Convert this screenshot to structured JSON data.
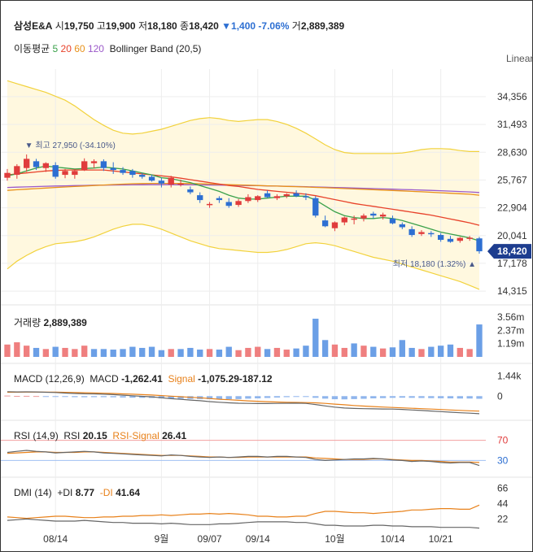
{
  "header": {
    "name": "삼성E&A",
    "open_label": "시",
    "open": "19,750",
    "high_label": "고",
    "high": "19,900",
    "low_label": "저",
    "low": "18,180",
    "close_label": "종",
    "close": "18,420",
    "change_arrow": "▼",
    "change": "1,400",
    "change_pct": "-7.06%",
    "volume_label": "거",
    "volume": "2,889,389"
  },
  "legend": {
    "ma_label": "이동평균",
    "ma_periods": [
      "5",
      "20",
      "60",
      "120"
    ],
    "ma_colors": [
      "#3aa14a",
      "#e8422a",
      "#e8911a",
      "#9b59c9"
    ],
    "bollinger": "Bollinger Band (20,5)"
  },
  "scale_mode": "Linear",
  "colors": {
    "up": "#e03c3c",
    "down": "#2d6fd2",
    "band": "#f2d23c",
    "band_fill": "#fff8df",
    "price_tag": "#1d3d8f"
  },
  "chart_data": [
    {
      "type": "candlestick",
      "panel": "price",
      "y_ticks": [
        "34,356",
        "31,493",
        "28,630",
        "25,767",
        "22,904",
        "20,041",
        "17,178",
        "14,315"
      ],
      "y_tick_values": [
        34356,
        31493,
        28630,
        25767,
        22904,
        20041,
        17178,
        14315
      ],
      "ylim": [
        13400,
        37200
      ],
      "x_ticks": [
        "08/14",
        "9월",
        "09/07",
        "09/14",
        "10월",
        "10/14",
        "10/21"
      ],
      "x_tick_index": [
        5,
        16,
        21,
        26,
        34,
        40,
        45
      ],
      "candles": [
        {
          "o": 26000,
          "h": 26900,
          "l": 25700,
          "c": 26500
        },
        {
          "o": 26300,
          "h": 27400,
          "l": 25900,
          "c": 27200
        },
        {
          "o": 27000,
          "h": 28400,
          "l": 26600,
          "c": 27950
        },
        {
          "o": 27700,
          "h": 27950,
          "l": 26800,
          "c": 27100
        },
        {
          "o": 27000,
          "h": 27600,
          "l": 26600,
          "c": 27500
        },
        {
          "o": 27300,
          "h": 27600,
          "l": 25900,
          "c": 26100
        },
        {
          "o": 26300,
          "h": 26900,
          "l": 25950,
          "c": 26700
        },
        {
          "o": 26300,
          "h": 26900,
          "l": 25900,
          "c": 26700
        },
        {
          "o": 26800,
          "h": 28000,
          "l": 26700,
          "c": 27700
        },
        {
          "o": 27500,
          "h": 27900,
          "l": 27000,
          "c": 27700
        },
        {
          "o": 27700,
          "h": 27900,
          "l": 26700,
          "c": 27000
        },
        {
          "o": 27000,
          "h": 27600,
          "l": 26400,
          "c": 26800
        },
        {
          "o": 26800,
          "h": 27100,
          "l": 26300,
          "c": 26500
        },
        {
          "o": 26700,
          "h": 26900,
          "l": 26000,
          "c": 26300
        },
        {
          "o": 26300,
          "h": 26500,
          "l": 25900,
          "c": 26100
        },
        {
          "o": 26100,
          "h": 26300,
          "l": 25600,
          "c": 25700
        },
        {
          "o": 25700,
          "h": 26000,
          "l": 25000,
          "c": 25400
        },
        {
          "o": 25300,
          "h": 26200,
          "l": 25000,
          "c": 26000
        },
        {
          "o": 25300,
          "h": 25800,
          "l": 25100,
          "c": 25400
        },
        {
          "o": 24800,
          "h": 25100,
          "l": 24300,
          "c": 24500
        },
        {
          "o": 24200,
          "h": 24500,
          "l": 23400,
          "c": 23700
        },
        {
          "o": 23200,
          "h": 23500,
          "l": 22900,
          "c": 23300
        },
        {
          "o": 23900,
          "h": 24100,
          "l": 23400,
          "c": 23700
        },
        {
          "o": 23500,
          "h": 23900,
          "l": 22900,
          "c": 23100
        },
        {
          "o": 23200,
          "h": 23800,
          "l": 23000,
          "c": 23600
        },
        {
          "o": 23600,
          "h": 24300,
          "l": 23400,
          "c": 24000
        },
        {
          "o": 23700,
          "h": 24200,
          "l": 23500,
          "c": 24100
        },
        {
          "o": 24400,
          "h": 24700,
          "l": 23900,
          "c": 24000
        },
        {
          "o": 23900,
          "h": 24300,
          "l": 23700,
          "c": 24100
        },
        {
          "o": 24100,
          "h": 24400,
          "l": 23900,
          "c": 24300
        },
        {
          "o": 24400,
          "h": 24700,
          "l": 24000,
          "c": 24100
        },
        {
          "o": 24100,
          "h": 24400,
          "l": 23700,
          "c": 24000
        },
        {
          "o": 23900,
          "h": 24100,
          "l": 21900,
          "c": 22100
        },
        {
          "o": 21600,
          "h": 22100,
          "l": 20900,
          "c": 21000
        },
        {
          "o": 20800,
          "h": 21500,
          "l": 20500,
          "c": 21400
        },
        {
          "o": 21400,
          "h": 22000,
          "l": 21100,
          "c": 21900
        },
        {
          "o": 21700,
          "h": 22100,
          "l": 21200,
          "c": 21800
        },
        {
          "o": 21800,
          "h": 22300,
          "l": 21500,
          "c": 22100
        },
        {
          "o": 22300,
          "h": 22500,
          "l": 21800,
          "c": 22100
        },
        {
          "o": 22000,
          "h": 22400,
          "l": 21700,
          "c": 22200
        },
        {
          "o": 21800,
          "h": 22100,
          "l": 21200,
          "c": 21300
        },
        {
          "o": 21200,
          "h": 21400,
          "l": 20700,
          "c": 20900
        },
        {
          "o": 20700,
          "h": 21000,
          "l": 19900,
          "c": 20100
        },
        {
          "o": 20200,
          "h": 20600,
          "l": 20000,
          "c": 20400
        },
        {
          "o": 20300,
          "h": 20500,
          "l": 19900,
          "c": 20200
        },
        {
          "o": 20100,
          "h": 20300,
          "l": 19400,
          "c": 19600
        },
        {
          "o": 19700,
          "h": 20000,
          "l": 19300,
          "c": 19400
        },
        {
          "o": 19500,
          "h": 19900,
          "l": 19300,
          "c": 19800
        },
        {
          "o": 19800,
          "h": 20000,
          "l": 19500,
          "c": 19820
        },
        {
          "o": 19750,
          "h": 19900,
          "l": 18180,
          "c": 18420
        }
      ],
      "ma5": [
        26200,
        26400,
        26700,
        27000,
        27200,
        27100,
        27000,
        26900,
        26950,
        27000,
        27100,
        27000,
        26900,
        26700,
        26500,
        26300,
        26000,
        25900,
        25700,
        25500,
        25200,
        24900,
        24600,
        24200,
        23900,
        23800,
        23800,
        23900,
        24000,
        24100,
        24100,
        24100,
        23700,
        23100,
        22500,
        22100,
        21900,
        21800,
        21800,
        21900,
        21800,
        21600,
        21300,
        21000,
        20700,
        20400,
        20200,
        20000,
        19800,
        19500
      ],
      "ma20": [
        26300,
        26400,
        26500,
        26600,
        26700,
        26750,
        26800,
        26800,
        26800,
        26800,
        26800,
        26700,
        26600,
        26500,
        26400,
        26300,
        26200,
        26100,
        25950,
        25800,
        25650,
        25500,
        25350,
        25200,
        25100,
        24950,
        24800,
        24700,
        24600,
        24500,
        24400,
        24300,
        24150,
        23950,
        23750,
        23550,
        23350,
        23200,
        23050,
        22900,
        22750,
        22600,
        22450,
        22300,
        22150,
        21950,
        21750,
        21550,
        21350,
        21100
      ],
      "ma60": [
        24700,
        24760,
        24820,
        24880,
        24940,
        25000,
        25050,
        25100,
        25150,
        25200,
        25250,
        25300,
        25340,
        25380,
        25400,
        25420,
        25420,
        25420,
        25410,
        25400,
        25380,
        25350,
        25320,
        25290,
        25260,
        25230,
        25200,
        25170,
        25140,
        25110,
        25080,
        25050,
        25010,
        24970,
        24930,
        24890,
        24850,
        24810,
        24770,
        24730,
        24690,
        24650,
        24600,
        24550,
        24500,
        24450,
        24400,
        24350,
        24300,
        24200
      ],
      "ma120": [
        25000,
        25030,
        25060,
        25090,
        25120,
        25150,
        25170,
        25190,
        25210,
        25230,
        25240,
        25250,
        25260,
        25270,
        25275,
        25280,
        25280,
        25280,
        25275,
        25270,
        25260,
        25250,
        25240,
        25225,
        25210,
        25195,
        25180,
        25160,
        25140,
        25120,
        25100,
        25075,
        25050,
        25025,
        25000,
        24970,
        24940,
        24910,
        24880,
        24850,
        24820,
        24790,
        24760,
        24730,
        24700,
        24660,
        24620,
        24580,
        24540,
        24480
      ],
      "bb_upper": [
        36000,
        35700,
        35400,
        35100,
        34800,
        34400,
        34000,
        33400,
        32700,
        32000,
        31400,
        30900,
        30600,
        30500,
        30600,
        30800,
        31000,
        31300,
        31600,
        31900,
        32100,
        32200,
        32100,
        31900,
        31800,
        31900,
        32000,
        32000,
        31800,
        31500,
        31100,
        30600,
        30000,
        29400,
        28900,
        28600,
        28500,
        28500,
        28500,
        28500,
        28500,
        28550,
        28700,
        28900,
        29000,
        29000,
        28950,
        28800,
        28700,
        28700
      ],
      "bb_lower": [
        16600,
        17400,
        18000,
        18500,
        18900,
        19200,
        19300,
        19400,
        19600,
        19900,
        20300,
        20700,
        21000,
        21200,
        21200,
        21000,
        20700,
        20300,
        19900,
        19500,
        19200,
        18900,
        18700,
        18600,
        18500,
        18400,
        18300,
        18300,
        18400,
        18600,
        18900,
        19200,
        19300,
        19200,
        19000,
        18700,
        18400,
        18100,
        17800,
        17600,
        17400,
        17100,
        16800,
        16500,
        16200,
        15900,
        15600,
        15300,
        14900,
        14500
      ],
      "annotations": {
        "max_label": "최고",
        "max_value": "27,950 (-34.10%)",
        "min_label": "최저",
        "min_value": "18,180 (1.32%)"
      },
      "last_price_label": "18,420"
    },
    {
      "type": "bar",
      "panel": "volume",
      "label": "거래량",
      "value": "2,889,389",
      "y_ticks": [
        "3.56m",
        "2.37m",
        "1.19m"
      ],
      "y_tick_values": [
        3560000,
        2370000,
        1190000
      ],
      "ylim": [
        0,
        4200000
      ],
      "values": [
        1100000,
        1300000,
        1000000,
        800000,
        700000,
        900000,
        800000,
        700000,
        1000000,
        700000,
        700000,
        650000,
        700000,
        900000,
        800000,
        900000,
        600000,
        700000,
        700000,
        800000,
        650000,
        700000,
        650000,
        900000,
        600000,
        800000,
        900000,
        700000,
        800000,
        650000,
        750000,
        1000000,
        3400000,
        1500000,
        1100000,
        800000,
        1200000,
        1000000,
        900000,
        750000,
        850000,
        1500000,
        800000,
        700000,
        900000,
        1000000,
        1100000,
        800000,
        700000,
        2889389
      ],
      "up": [
        true,
        true,
        true,
        false,
        true,
        false,
        true,
        true,
        true,
        false,
        false,
        false,
        false,
        false,
        false,
        false,
        false,
        true,
        false,
        false,
        false,
        true,
        false,
        false,
        true,
        true,
        true,
        false,
        true,
        true,
        false,
        false,
        false,
        false,
        true,
        true,
        false,
        true,
        false,
        true,
        false,
        false,
        false,
        true,
        false,
        false,
        false,
        true,
        true,
        false
      ]
    },
    {
      "type": "line",
      "panel": "macd",
      "label": "MACD (12,26,9)",
      "macd_label": "MACD",
      "macd_value": "-1,262.41",
      "signal_label": "Signal",
      "signal_value": "-1,075.29",
      "hist_value": "-187.12",
      "y_ticks": [
        "1.44k",
        "0"
      ],
      "y_tick_values": [
        1440,
        0
      ],
      "ylim": [
        -1500,
        2000
      ],
      "macd": [
        320,
        300,
        310,
        300,
        280,
        260,
        220,
        190,
        170,
        160,
        140,
        110,
        70,
        30,
        -10,
        -50,
        -120,
        -180,
        -230,
        -280,
        -330,
        -390,
        -440,
        -480,
        -510,
        -520,
        -530,
        -530,
        -520,
        -510,
        -500,
        -520,
        -600,
        -700,
        -790,
        -850,
        -880,
        -900,
        -910,
        -920,
        -930,
        -950,
        -990,
        -1030,
        -1070,
        -1110,
        -1150,
        -1190,
        -1220,
        -1262
      ],
      "signal": [
        280,
        285,
        290,
        292,
        290,
        285,
        275,
        260,
        245,
        230,
        210,
        190,
        165,
        140,
        110,
        80,
        40,
        0,
        -40,
        -80,
        -120,
        -170,
        -220,
        -260,
        -300,
        -340,
        -370,
        -400,
        -420,
        -440,
        -450,
        -460,
        -480,
        -520,
        -570,
        -620,
        -670,
        -710,
        -750,
        -780,
        -810,
        -840,
        -870,
        -900,
        -930,
        -960,
        -990,
        -1020,
        -1050,
        -1075
      ]
    },
    {
      "type": "line",
      "panel": "rsi",
      "label": "RSI (14,9)",
      "rsi_label": "RSI",
      "rsi_value": "20.15",
      "signal_label": "RSI-Signal",
      "signal_value": "26.41",
      "y_ticks": [
        "70",
        "30"
      ],
      "y_tick_values": [
        70,
        30
      ],
      "ylim": [
        0,
        100
      ],
      "rsi": [
        46,
        48,
        50,
        48,
        47,
        45,
        46,
        47,
        48,
        47,
        45,
        44,
        43,
        42,
        41,
        40,
        39,
        41,
        40,
        38,
        37,
        36,
        37,
        36,
        37,
        38,
        38,
        37,
        38,
        38,
        37,
        36,
        32,
        30,
        31,
        32,
        33,
        33,
        34,
        33,
        31,
        30,
        28,
        29,
        28,
        26,
        25,
        26,
        26,
        20
      ],
      "signal": [
        44,
        45,
        46,
        47,
        47,
        46,
        46,
        46,
        47,
        47,
        46,
        45,
        44,
        43,
        42,
        41,
        40,
        40,
        40,
        39,
        38,
        37,
        37,
        36,
        36,
        37,
        37,
        37,
        37,
        37,
        37,
        37,
        35,
        34,
        33,
        32,
        32,
        32,
        33,
        33,
        32,
        31,
        30,
        30,
        29,
        28,
        27,
        27,
        27,
        26
      ]
    },
    {
      "type": "line",
      "panel": "dmi",
      "label": "DMI (14)",
      "plus_label": "+DI",
      "plus_value": "8.77",
      "minus_label": "-DI",
      "minus_value": "41.64",
      "y_ticks": [
        "66",
        "44",
        "22"
      ],
      "y_tick_values": [
        66,
        44,
        22
      ],
      "ylim": [
        5,
        75
      ],
      "plus_di": [
        20,
        21,
        22,
        21,
        20,
        19,
        19,
        19,
        20,
        19,
        18,
        17,
        17,
        16,
        16,
        16,
        15,
        16,
        15,
        14,
        14,
        14,
        15,
        15,
        16,
        17,
        18,
        18,
        18,
        18,
        17,
        17,
        15,
        13,
        13,
        12,
        12,
        12,
        13,
        13,
        12,
        12,
        11,
        11,
        11,
        10,
        10,
        10,
        10,
        9
      ],
      "minus_di": [
        25,
        24,
        23,
        24,
        25,
        26,
        26,
        25,
        24,
        24,
        25,
        25,
        26,
        26,
        27,
        27,
        28,
        27,
        28,
        29,
        29,
        30,
        29,
        30,
        29,
        28,
        26,
        26,
        25,
        25,
        26,
        26,
        30,
        33,
        33,
        32,
        31,
        31,
        30,
        31,
        32,
        33,
        35,
        35,
        36,
        37,
        37,
        36,
        36,
        42
      ]
    }
  ]
}
